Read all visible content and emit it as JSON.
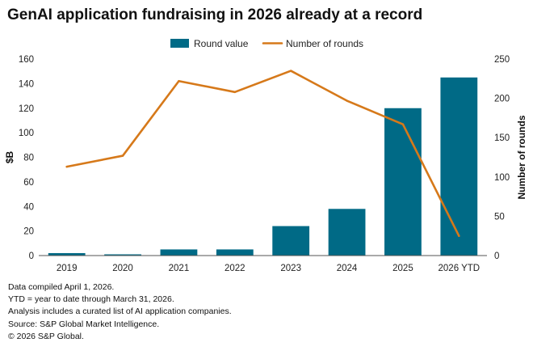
{
  "title": "GenAI application fundraising in 2026 already at a record",
  "footnotes": [
    "Data compiled April 1, 2026.",
    "YTD = year to date through March 31, 2026.",
    "Analysis includes a curated list of AI application companies.",
    "Source: S&P Global Market Intelligence.",
    "© 2026 S&P Global."
  ],
  "colors": {
    "bar": "#006a86",
    "line": "#d6791a",
    "axis": "#555555"
  },
  "chart_data": {
    "type": "bar",
    "categories": [
      "2019",
      "2020",
      "2021",
      "2022",
      "2023",
      "2024",
      "2025",
      "2026 YTD"
    ],
    "series": [
      {
        "name": "Round value",
        "type": "bar",
        "axis": "left",
        "values": [
          2,
          1,
          5,
          5,
          24,
          38,
          120,
          145
        ]
      },
      {
        "name": "Number of rounds",
        "type": "line",
        "axis": "right",
        "values": [
          113,
          127,
          222,
          208,
          235,
          197,
          167,
          25
        ]
      }
    ],
    "ylabel": "$B",
    "y2label": "Number of rounds",
    "ylim": [
      0,
      160
    ],
    "y2lim": [
      0,
      250
    ],
    "yticks": [
      "0",
      "20",
      "40",
      "60",
      "80",
      "100",
      "120",
      "140",
      "160"
    ],
    "y2ticks": [
      "0",
      "50",
      "100",
      "150",
      "200",
      "250"
    ],
    "legend_position": "top-center",
    "grid": false
  }
}
